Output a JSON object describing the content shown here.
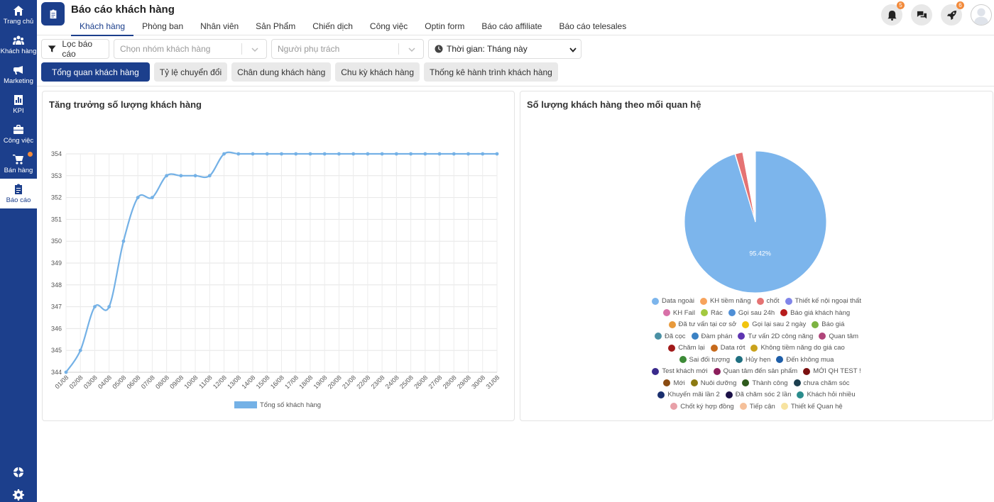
{
  "sidebar": {
    "items": [
      {
        "label": "Trang chủ",
        "icon": "home-icon"
      },
      {
        "label": "Khách hàng",
        "icon": "users-icon"
      },
      {
        "label": "Marketing",
        "icon": "megaphone-icon"
      },
      {
        "label": "KPI",
        "icon": "chart-icon"
      },
      {
        "label": "Công việc",
        "icon": "briefcase-icon"
      },
      {
        "label": "Bán hàng",
        "icon": "cart-icon"
      },
      {
        "label": "Báo cáo",
        "icon": "report-icon"
      }
    ],
    "bottom_icons": [
      "support-icon",
      "settings-icon"
    ]
  },
  "header": {
    "title": "Báo cáo khách hàng",
    "tabs": [
      "Khách hàng",
      "Phòng ban",
      "Nhân viên",
      "Sản Phẩm",
      "Chiến dịch",
      "Công việc",
      "Optin form",
      "Báo cáo affiliate",
      "Báo cáo telesales"
    ],
    "active_tab": "Khách hàng",
    "notifications_count": "5",
    "rocket_count": "6"
  },
  "filters": {
    "filter_label": "Lọc báo cáo",
    "group_placeholder": "Chọn nhóm khách hàng",
    "owner_placeholder": "Người phụ trách",
    "time_value": "Thời gian: Tháng này"
  },
  "subtabs": [
    "Tổng quan khách hàng",
    "Tỷ lệ chuyển đổi",
    "Chân dung khách hàng",
    "Chu kỳ khách hàng",
    "Thống kê hành trình khách hàng"
  ],
  "line_panel": {
    "title": "Tăng trưởng số lượng khách hàng"
  },
  "pie_panel": {
    "title": "Số lượng khách hàng theo mối quan hệ"
  },
  "chart_data": [
    {
      "type": "line",
      "title": "Tăng trưởng số lượng khách hàng",
      "x": [
        "01/08",
        "02/08",
        "03/08",
        "04/08",
        "05/08",
        "06/08",
        "07/08",
        "08/08",
        "09/08",
        "10/08",
        "11/08",
        "12/08",
        "13/08",
        "14/08",
        "15/08",
        "16/08",
        "17/08",
        "18/08",
        "19/08",
        "20/08",
        "21/08",
        "22/08",
        "23/08",
        "24/08",
        "25/08",
        "26/08",
        "27/08",
        "28/08",
        "29/08",
        "30/08",
        "31/08"
      ],
      "series": [
        {
          "name": "Tổng số khách hàng",
          "color": "#74b1e6",
          "values": [
            344,
            345,
            347,
            347,
            350,
            352,
            352,
            353,
            353,
            353,
            353,
            354,
            354,
            354,
            354,
            354,
            354,
            354,
            354,
            354,
            354,
            354,
            354,
            354,
            354,
            354,
            354,
            354,
            354,
            354,
            354
          ]
        }
      ],
      "ylim": [
        344,
        354
      ],
      "yticks": [
        344,
        345,
        346,
        347,
        348,
        349,
        350,
        351,
        352,
        353,
        354
      ],
      "grid": true,
      "legend": "bottom"
    },
    {
      "type": "pie",
      "title": "Số lượng khách hàng theo mối quan hệ",
      "slices": [
        {
          "label": "Data ngoài",
          "value": 95.42,
          "color": "#7cb5ec",
          "shown_label": "95.42%"
        },
        {
          "label": "KH tiềm năng",
          "value": 0.01,
          "color": "#f7a35c"
        },
        {
          "label": "chốt",
          "value": 1.7,
          "color": "#e57373"
        },
        {
          "label": "Thiết kế nội ngoại thất",
          "value": 0.01,
          "color": "#8085e9"
        },
        {
          "label": "KH Fail",
          "value": 0.01,
          "color": "#d870a8"
        },
        {
          "label": "Rác",
          "value": 0.01,
          "color": "#a3c940"
        },
        {
          "label": "Gọi sau 24h",
          "value": 0.01,
          "color": "#4f8fd6"
        },
        {
          "label": "Báo giá khách hàng",
          "value": 0.01,
          "color": "#b71c1c"
        },
        {
          "label": "Đã tư vấn tại cơ sở",
          "value": 0.01,
          "color": "#e89a3c"
        },
        {
          "label": "Gọi lại sau 2 ngày",
          "value": 0.01,
          "color": "#f1c40f"
        },
        {
          "label": "Báo giá",
          "value": 0.01,
          "color": "#7cb342"
        },
        {
          "label": "Đã cọc",
          "value": 0.01,
          "color": "#4a90a4"
        },
        {
          "label": "Đàm phán",
          "value": 0.01,
          "color": "#3b82c4"
        },
        {
          "label": "Tư vấn 2D công năng",
          "value": 0.01,
          "color": "#5e35b1"
        },
        {
          "label": "Quan tâm",
          "value": 0.01,
          "color": "#b0457a"
        },
        {
          "label": "Chăm lại",
          "value": 0.01,
          "color": "#a11a1a"
        },
        {
          "label": "Data rớt",
          "value": 0.01,
          "color": "#c66a1c"
        },
        {
          "label": "Không tiềm năng do giá cao",
          "value": 0.01,
          "color": "#c9a21c"
        },
        {
          "label": "Sai đối tượng",
          "value": 0.01,
          "color": "#3d8b37"
        },
        {
          "label": "Hủy hẹn",
          "value": 0.01,
          "color": "#1f6f80"
        },
        {
          "label": "Đến không mua",
          "value": 0.01,
          "color": "#1e5ea8"
        },
        {
          "label": "Test khách mới",
          "value": 0.01,
          "color": "#3a2a8c"
        },
        {
          "label": "Quan tâm đến sản phẩm",
          "value": 0.01,
          "color": "#8c1f5c"
        },
        {
          "label": "MỚI QH TEST !",
          "value": 0.01,
          "color": "#7a1010"
        },
        {
          "label": "Mới",
          "value": 0.01,
          "color": "#8a4b12"
        },
        {
          "label": "Nuôi dưỡng",
          "value": 0.01,
          "color": "#8c7a12"
        },
        {
          "label": "Thành công",
          "value": 0.01,
          "color": "#2e5a1c"
        },
        {
          "label": "chưa chăm sóc",
          "value": 0.01,
          "color": "#1c3f4f"
        },
        {
          "label": "Khuyến mãi lần 2",
          "value": 0.01,
          "color": "#1a2f6e"
        },
        {
          "label": "Đã chăm sóc 2 lần",
          "value": 0.01,
          "color": "#1b1147"
        },
        {
          "label": "Khách hỏi nhiều",
          "value": 0.01,
          "color": "#2a8c8c"
        },
        {
          "label": "Chốt ký hợp đồng",
          "value": 0.01,
          "color": "#e8a0a8"
        },
        {
          "label": "Tiếp cận",
          "value": 0.01,
          "color": "#f5c09a"
        },
        {
          "label": "Thiết kế Quan hệ",
          "value": 0.01,
          "color": "#f7e3a0"
        }
      ],
      "legend": "bottom"
    }
  ]
}
